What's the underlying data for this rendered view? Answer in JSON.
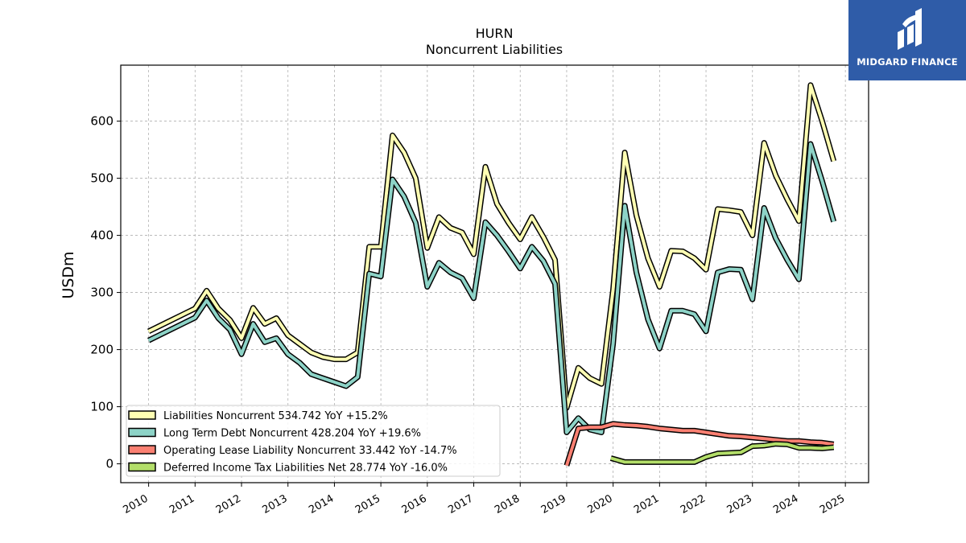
{
  "logo": {
    "text": "MIDGARD FINANCE",
    "icon": "midgard-logo-icon",
    "background": "#2f5ca8"
  },
  "chart_data": {
    "type": "line",
    "title": "HURN",
    "subtitle": "Noncurrent  Liabilities",
    "xlabel": "",
    "ylabel": "USDm",
    "xlim": [
      2009.4,
      2025.5
    ],
    "ylim": [
      -33,
      698
    ],
    "grid": true,
    "legend_position": "lower-left",
    "x_ticks": [
      "2010",
      "2011",
      "2012",
      "2013",
      "2014",
      "2015",
      "2016",
      "2017",
      "2018",
      "2019",
      "2020",
      "2021",
      "2022",
      "2023",
      "2024",
      "2025"
    ],
    "y_ticks": [
      0,
      100,
      200,
      300,
      400,
      500,
      600
    ],
    "series": [
      {
        "name": "Liabilities Noncurrent",
        "legend": "Liabilities Noncurrent  534.742 YoY +15.2%",
        "color": "#ffffb3",
        "points": [
          [
            2010.0,
            232
          ],
          [
            2010.25,
            242
          ],
          [
            2010.5,
            252
          ],
          [
            2010.75,
            262
          ],
          [
            2011.0,
            272
          ],
          [
            2011.25,
            303
          ],
          [
            2011.5,
            272
          ],
          [
            2011.75,
            252
          ],
          [
            2012.0,
            220
          ],
          [
            2012.25,
            273
          ],
          [
            2012.5,
            245
          ],
          [
            2012.75,
            255
          ],
          [
            2013.0,
            225
          ],
          [
            2013.25,
            210
          ],
          [
            2013.5,
            195
          ],
          [
            2013.75,
            187
          ],
          [
            2014.0,
            183
          ],
          [
            2014.25,
            183
          ],
          [
            2014.5,
            195
          ],
          [
            2014.75,
            380
          ],
          [
            2015.0,
            380
          ],
          [
            2015.25,
            575
          ],
          [
            2015.5,
            545
          ],
          [
            2015.75,
            500
          ],
          [
            2016.0,
            378
          ],
          [
            2016.25,
            432
          ],
          [
            2016.5,
            413
          ],
          [
            2016.75,
            405
          ],
          [
            2017.0,
            367
          ],
          [
            2017.25,
            520
          ],
          [
            2017.5,
            455
          ],
          [
            2017.75,
            422
          ],
          [
            2018.0,
            393
          ],
          [
            2018.25,
            432
          ],
          [
            2018.5,
            397
          ],
          [
            2018.75,
            357
          ],
          [
            2019.0,
            98
          ],
          [
            2019.25,
            168
          ],
          [
            2019.5,
            150
          ],
          [
            2019.75,
            140
          ],
          [
            2020.0,
            305
          ],
          [
            2020.25,
            545
          ],
          [
            2020.5,
            435
          ],
          [
            2020.75,
            360
          ],
          [
            2021.0,
            310
          ],
          [
            2021.25,
            373
          ],
          [
            2021.5,
            372
          ],
          [
            2021.75,
            360
          ],
          [
            2022.0,
            340
          ],
          [
            2022.25,
            446
          ],
          [
            2022.5,
            444
          ],
          [
            2022.75,
            441
          ],
          [
            2023.0,
            400
          ],
          [
            2023.25,
            562
          ],
          [
            2023.5,
            505
          ],
          [
            2023.75,
            463
          ],
          [
            2024.0,
            425
          ],
          [
            2024.25,
            663
          ],
          [
            2024.5,
            600
          ],
          [
            2024.75,
            530
          ]
        ]
      },
      {
        "name": "Long Term Debt Noncurrent",
        "legend": "Long Term Debt Noncurrent  428.204 YoY +19.6%",
        "color": "#8dd3c7",
        "points": [
          [
            2010.0,
            216
          ],
          [
            2010.25,
            226
          ],
          [
            2010.5,
            236
          ],
          [
            2010.75,
            246
          ],
          [
            2011.0,
            256
          ],
          [
            2011.25,
            286
          ],
          [
            2011.5,
            255
          ],
          [
            2011.75,
            235
          ],
          [
            2012.0,
            192
          ],
          [
            2012.25,
            245
          ],
          [
            2012.5,
            213
          ],
          [
            2012.75,
            220
          ],
          [
            2013.0,
            192
          ],
          [
            2013.25,
            177
          ],
          [
            2013.5,
            157
          ],
          [
            2013.75,
            150
          ],
          [
            2014.0,
            143
          ],
          [
            2014.25,
            136
          ],
          [
            2014.5,
            152
          ],
          [
            2014.75,
            333
          ],
          [
            2015.0,
            328
          ],
          [
            2015.25,
            498
          ],
          [
            2015.5,
            468
          ],
          [
            2015.75,
            422
          ],
          [
            2016.0,
            310
          ],
          [
            2016.25,
            352
          ],
          [
            2016.5,
            335
          ],
          [
            2016.75,
            325
          ],
          [
            2017.0,
            290
          ],
          [
            2017.25,
            423
          ],
          [
            2017.5,
            400
          ],
          [
            2017.75,
            372
          ],
          [
            2018.0,
            342
          ],
          [
            2018.25,
            380
          ],
          [
            2018.5,
            355
          ],
          [
            2018.75,
            315
          ],
          [
            2019.0,
            55
          ],
          [
            2019.25,
            80
          ],
          [
            2019.5,
            60
          ],
          [
            2019.75,
            55
          ],
          [
            2020.0,
            210
          ],
          [
            2020.25,
            452
          ],
          [
            2020.5,
            335
          ],
          [
            2020.75,
            253
          ],
          [
            2021.0,
            202
          ],
          [
            2021.25,
            268
          ],
          [
            2021.5,
            268
          ],
          [
            2021.75,
            262
          ],
          [
            2022.0,
            232
          ],
          [
            2022.25,
            335
          ],
          [
            2022.5,
            341
          ],
          [
            2022.75,
            340
          ],
          [
            2023.0,
            288
          ],
          [
            2023.25,
            448
          ],
          [
            2023.5,
            395
          ],
          [
            2023.75,
            357
          ],
          [
            2024.0,
            323
          ],
          [
            2024.25,
            560
          ],
          [
            2024.5,
            495
          ],
          [
            2024.75,
            424
          ]
        ]
      },
      {
        "name": "Operating Lease Liability Noncurrent",
        "legend": "Operating Lease Liability Noncurrent  33.442 YoY -14.7%",
        "color": "#fb8072",
        "points": [
          [
            2019.0,
            -3
          ],
          [
            2019.25,
            62
          ],
          [
            2019.5,
            64
          ],
          [
            2019.75,
            64
          ],
          [
            2020.0,
            70
          ],
          [
            2020.25,
            68
          ],
          [
            2020.5,
            67
          ],
          [
            2020.75,
            65
          ],
          [
            2021.0,
            62
          ],
          [
            2021.25,
            60
          ],
          [
            2021.5,
            58
          ],
          [
            2021.75,
            58
          ],
          [
            2022.0,
            55
          ],
          [
            2022.25,
            52
          ],
          [
            2022.5,
            49
          ],
          [
            2022.75,
            48
          ],
          [
            2023.0,
            46
          ],
          [
            2023.25,
            44
          ],
          [
            2023.5,
            42
          ],
          [
            2023.75,
            40
          ],
          [
            2024.0,
            40
          ],
          [
            2024.25,
            38
          ],
          [
            2024.5,
            37
          ],
          [
            2024.75,
            34
          ]
        ]
      },
      {
        "name": "Deferred Income Tax Liabilities Net",
        "legend": "Deferred Income Tax Liabilities Net  28.774 YoY -16.0%",
        "color": "#b3de69",
        "points": [
          [
            2019.95,
            10
          ],
          [
            2020.25,
            3
          ],
          [
            2020.5,
            3
          ],
          [
            2020.75,
            3
          ],
          [
            2021.0,
            3
          ],
          [
            2021.25,
            3
          ],
          [
            2021.5,
            3
          ],
          [
            2021.75,
            3
          ],
          [
            2022.0,
            12
          ],
          [
            2022.25,
            18
          ],
          [
            2022.5,
            19
          ],
          [
            2022.75,
            20
          ],
          [
            2023.0,
            31
          ],
          [
            2023.25,
            32
          ],
          [
            2023.5,
            35
          ],
          [
            2023.75,
            34
          ],
          [
            2024.0,
            28
          ],
          [
            2024.25,
            28
          ],
          [
            2024.5,
            27
          ],
          [
            2024.75,
            29
          ]
        ]
      }
    ]
  }
}
